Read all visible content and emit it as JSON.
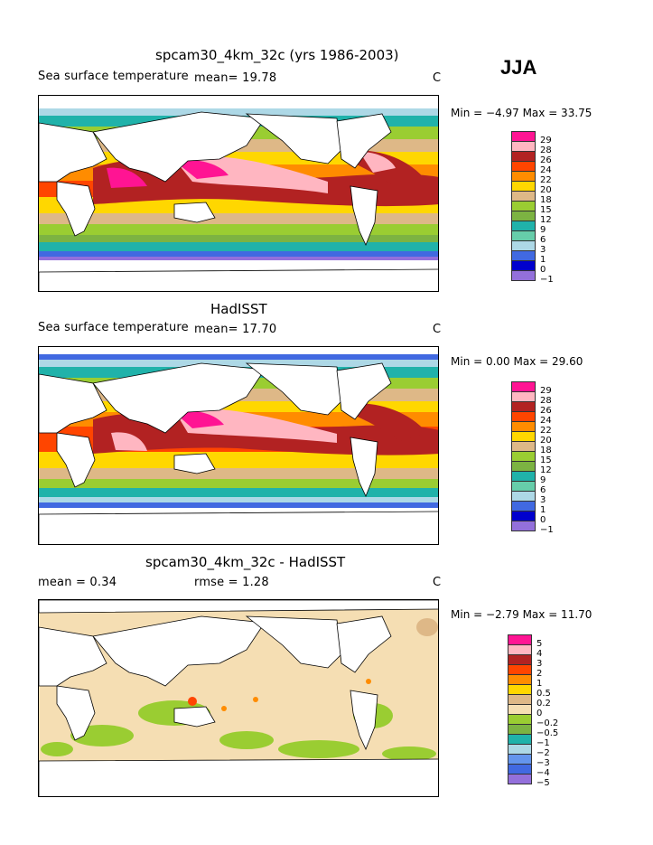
{
  "season": "JJA",
  "panels": [
    {
      "title": "spcam30_4km_32c (yrs 1986-2003)",
      "left": "Sea surface temperature",
      "mean": "mean=   19.78",
      "unit": "C",
      "minmax": "Min =   −4.97  Max =   33.75",
      "legend_labels": [
        "29",
        "28",
        "26",
        "24",
        "22",
        "20",
        "18",
        "15",
        "12",
        "9",
        "6",
        "3",
        "1",
        "0",
        "−1"
      ]
    },
    {
      "title": "HadISST",
      "left": "Sea surface temperature",
      "mean": "mean=   17.70",
      "unit": "C",
      "minmax": "Min =    0.00  Max =   29.60",
      "legend_labels": [
        "29",
        "28",
        "26",
        "24",
        "22",
        "20",
        "18",
        "15",
        "12",
        "9",
        "6",
        "3",
        "1",
        "0",
        "−1"
      ]
    },
    {
      "title": "spcam30_4km_32c - HadISST",
      "left": "mean =     0.34",
      "mean": "rmse =     1.28",
      "unit": "C",
      "minmax": "Min =   −2.79  Max =   11.70",
      "legend_labels": [
        "5",
        "4",
        "3",
        "2",
        "1",
        "0.5",
        "0.2",
        "0",
        "−0.2",
        "−0.5",
        "−1",
        "−2",
        "−3",
        "−4",
        "−5"
      ]
    }
  ],
  "colors": {
    "sst": [
      "#ff1493",
      "#ffb6c1",
      "#b22222",
      "#ff4500",
      "#ff8c00",
      "#ffd700",
      "#deb887",
      "#9acd32",
      "#7cb342",
      "#20b2aa",
      "#66cdaa",
      "#add8e6",
      "#4169e1",
      "#0000cd",
      "#9370db"
    ],
    "diff": [
      "#ff1493",
      "#ffb6c1",
      "#b22222",
      "#ff4500",
      "#ff8c00",
      "#ffd700",
      "#deb887",
      "#f5deb3",
      "#9acd32",
      "#7cb342",
      "#20b2aa",
      "#add8e6",
      "#6495ed",
      "#4169e1",
      "#9370db"
    ]
  }
}
